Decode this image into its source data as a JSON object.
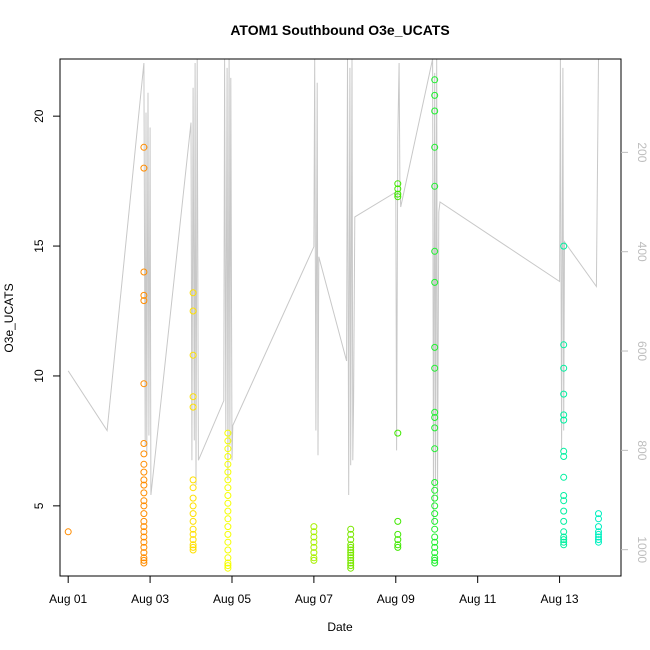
{
  "chart_data": {
    "type": "scatter",
    "title": "ATOM1 Southbound O3e_UCATS",
    "xlabel": "Date",
    "ylabel": "O3e_UCATS",
    "x_ticks": [
      "Aug 01",
      "Aug 03",
      "Aug 05",
      "Aug 07",
      "Aug 09",
      "Aug 11",
      "Aug 13"
    ],
    "y_ticks": [
      5,
      10,
      15,
      20
    ],
    "y2_ticks": [
      200,
      400,
      600,
      800,
      1000
    ],
    "xlim": [
      -0.2,
      13.5
    ],
    "ylim": [
      2.3,
      22.2
    ],
    "y2lim": [
      1053,
      12
    ],
    "point_groups": [
      {
        "color": "#ff8c00",
        "x": 0.0,
        "y": [
          4.0
        ]
      },
      {
        "color": "#ff8c00",
        "x": 1.85,
        "y": [
          18.8,
          18.0,
          14.0,
          13.1,
          12.9,
          9.7,
          7.4,
          7.0,
          6.6,
          6.3,
          6.0,
          5.8,
          5.5,
          5.2,
          5.0,
          4.7,
          4.4,
          4.2,
          4.0,
          3.8,
          3.6,
          3.4,
          3.2,
          3.0,
          2.9,
          2.8
        ]
      },
      {
        "color": "#ffe000",
        "x": 3.05,
        "y": [
          13.2,
          12.5,
          10.8,
          9.2,
          8.8,
          6.0,
          5.7,
          5.3,
          5.0,
          4.7,
          4.4,
          4.1,
          3.9,
          3.7,
          3.5,
          3.4,
          3.3
        ]
      },
      {
        "color": "#f5ff00",
        "x": 3.9,
        "y": [
          7.8,
          7.5,
          7.2,
          6.9,
          6.6,
          6.3,
          6.0,
          5.7,
          5.4,
          5.1,
          4.8,
          4.5,
          4.2,
          3.9,
          3.6,
          3.3,
          3.0,
          2.8,
          2.7,
          2.6
        ]
      },
      {
        "color": "#a8f000",
        "x": 6.0,
        "y": [
          4.2,
          4.0,
          3.8,
          3.6,
          3.4,
          3.2,
          3.0,
          2.9
        ]
      },
      {
        "color": "#7be800",
        "x": 6.9,
        "y": [
          4.1,
          3.9,
          3.7,
          3.5,
          3.4,
          3.3,
          3.2,
          3.1,
          3.0,
          2.9,
          2.8,
          2.7,
          2.6
        ]
      },
      {
        "color": "#40e800",
        "x": 8.05,
        "y": [
          17.4,
          17.2,
          17.0,
          16.9,
          7.8,
          4.4,
          3.9,
          3.7,
          3.5,
          3.4
        ]
      },
      {
        "color": "#20f030",
        "x": 8.95,
        "y": [
          21.4,
          20.8,
          20.2,
          18.8,
          17.3,
          14.8,
          13.6,
          11.1,
          10.3,
          8.6,
          8.4,
          8.0,
          7.2,
          5.9,
          5.6,
          5.3,
          5.0,
          4.7,
          4.4,
          4.1,
          3.8,
          3.6,
          3.4,
          3.2,
          3.0,
          2.9,
          2.8
        ]
      },
      {
        "color": "#00f0a0",
        "x": 12.1,
        "y": [
          15.0,
          11.2,
          10.3,
          9.3,
          8.5,
          8.3,
          7.1,
          6.9,
          6.1,
          5.4,
          5.2,
          4.8,
          4.4,
          4.0,
          3.8,
          3.7,
          3.6,
          3.5
        ]
      },
      {
        "color": "#00f0c0",
        "x": 12.95,
        "y": [
          4.7,
          4.5,
          4.2,
          4.0,
          3.9,
          3.8,
          3.7,
          3.6
        ]
      }
    ],
    "line_series": {
      "color": "#c8c8c8",
      "x": [
        0.0,
        0.95,
        1.85,
        1.88,
        1.9,
        1.92,
        1.95,
        1.97,
        2.0,
        2.02,
        3.0,
        3.02,
        3.05,
        3.08,
        3.1,
        3.12,
        3.15,
        3.18,
        3.8,
        3.82,
        3.85,
        3.88,
        3.9,
        3.93,
        3.95,
        3.97,
        4.0,
        4.02,
        6.0,
        6.02,
        6.05,
        6.08,
        6.1,
        6.12,
        6.8,
        6.82,
        6.85,
        6.88,
        6.9,
        6.93,
        6.95,
        6.97,
        7.0,
        8.0,
        8.02,
        8.05,
        8.08,
        8.1,
        8.12,
        8.9,
        8.92,
        8.95,
        8.97,
        9.0,
        9.02,
        9.05,
        9.08,
        12.0,
        12.02,
        12.05,
        12.08,
        12.1,
        12.12,
        12.9,
        12.95
      ],
      "y": [
        640,
        760,
        20,
        790,
        120,
        810,
        80,
        770,
        150,
        890,
        140,
        820,
        70,
        780,
        20,
        870,
        12,
        820,
        700,
        12,
        760,
        30,
        860,
        12,
        790,
        50,
        820,
        750,
        390,
        12,
        760,
        60,
        810,
        410,
        620,
        12,
        890,
        30,
        830,
        12,
        820,
        700,
        330,
        280,
        800,
        170,
        20,
        260,
        310,
        12,
        950,
        40,
        870,
        12,
        900,
        320,
        300,
        460,
        12,
        800,
        30,
        760,
        380,
        470,
        12
      ]
    }
  }
}
